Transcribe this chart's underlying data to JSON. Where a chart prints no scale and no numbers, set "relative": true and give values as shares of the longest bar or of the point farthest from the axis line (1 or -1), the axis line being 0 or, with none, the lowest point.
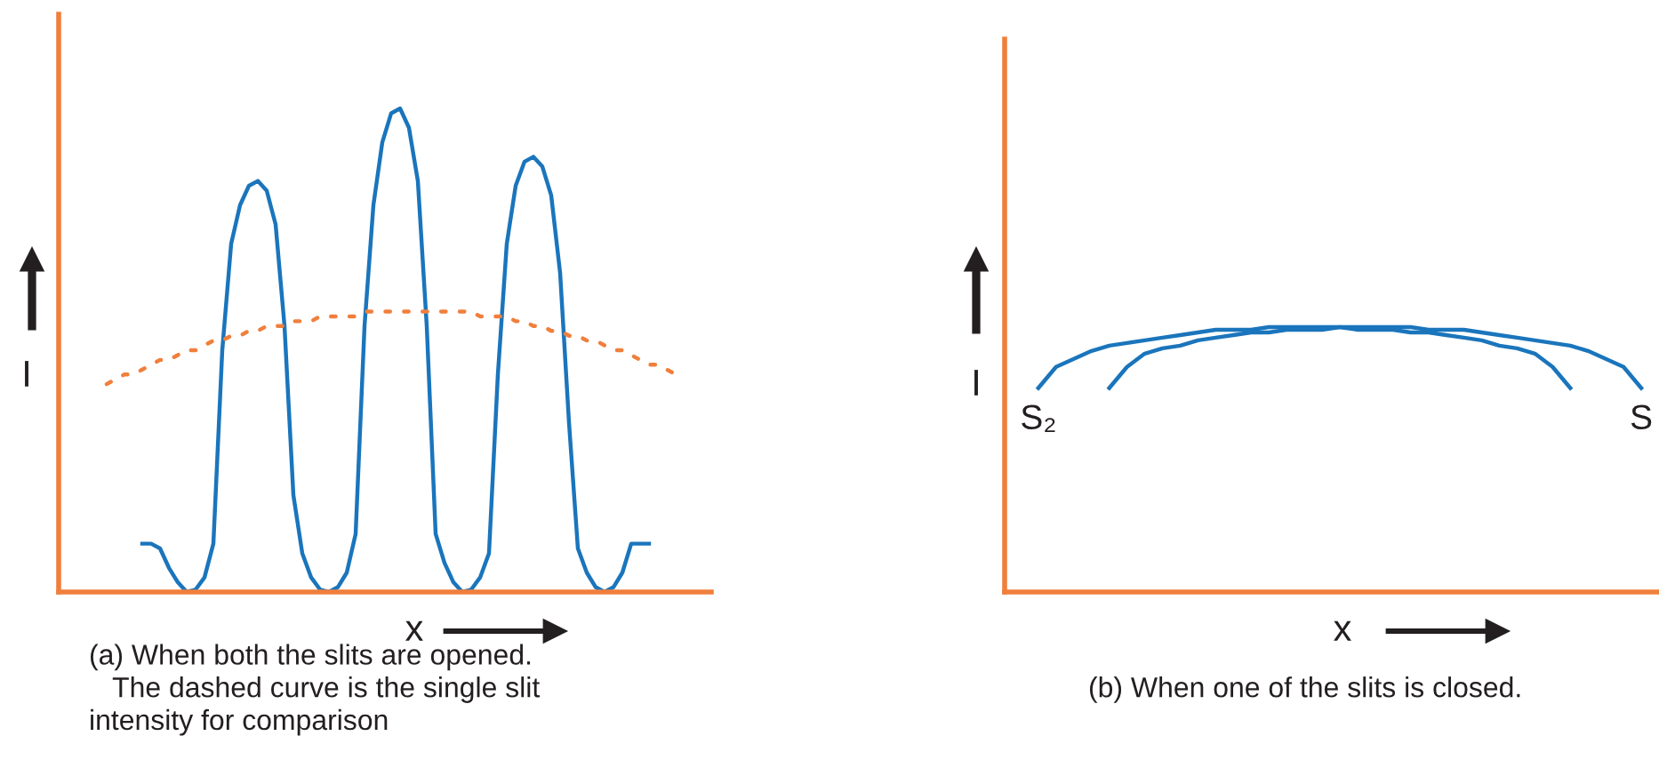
{
  "chart_data": [
    {
      "type": "line",
      "relative": true,
      "xlabel": "x",
      "ylabel": "I",
      "tick_labels": false,
      "marker": "none",
      "categories": [
        null,
        null,
        null,
        null,
        null,
        null,
        null,
        null,
        null,
        null,
        null,
        null,
        null,
        null,
        null,
        null,
        null,
        null,
        null,
        null,
        null,
        null,
        null,
        null,
        null,
        null,
        null,
        null,
        null,
        null,
        null,
        null,
        null,
        null,
        null,
        null,
        null,
        null,
        null,
        null,
        null,
        null,
        null,
        null,
        null,
        null,
        null,
        null,
        null,
        null,
        null,
        null,
        null,
        null,
        null,
        null,
        null,
        null,
        null,
        null,
        null,
        null,
        null,
        null,
        null
      ],
      "series": [
        {
          "color": "#1a75bc",
          "line_style": "solid",
          "values": [
            null,
            null,
            null,
            null,
            0.1,
            0.1,
            0.09,
            0.05,
            0.02,
            0.0,
            0.005,
            0.03,
            0.1,
            0.5,
            0.72,
            0.8,
            0.84,
            0.85,
            0.83,
            0.76,
            0.55,
            0.2,
            0.08,
            0.03,
            0.005,
            0.0,
            0.01,
            0.04,
            0.12,
            0.55,
            0.8,
            0.93,
            0.99,
            1.0,
            0.96,
            0.85,
            0.55,
            0.12,
            0.06,
            0.02,
            0.0,
            0.005,
            0.03,
            0.08,
            0.45,
            0.72,
            0.84,
            0.89,
            0.9,
            0.88,
            0.82,
            0.66,
            0.35,
            0.09,
            0.04,
            0.01,
            0.0,
            0.01,
            0.04,
            0.1,
            0.1,
            0.1,
            null,
            null,
            null
          ]
        },
        {
          "color": "#f07f3c",
          "line_style": "dotted",
          "values": [
            0.43,
            0.44,
            0.45,
            0.45,
            0.46,
            0.47,
            0.48,
            0.48,
            0.49,
            0.5,
            0.5,
            0.51,
            0.52,
            0.52,
            0.53,
            0.53,
            0.54,
            0.54,
            0.55,
            0.55,
            0.55,
            0.56,
            0.56,
            0.56,
            0.57,
            0.57,
            0.57,
            0.57,
            0.57,
            0.58,
            0.58,
            0.58,
            0.58,
            0.58,
            0.58,
            0.58,
            0.58,
            0.58,
            0.58,
            0.58,
            0.58,
            0.58,
            0.57,
            0.57,
            0.57,
            0.57,
            0.56,
            0.56,
            0.55,
            0.55,
            0.54,
            0.54,
            0.53,
            0.53,
            0.52,
            0.52,
            0.51,
            0.5,
            0.5,
            0.49,
            0.48,
            0.47,
            0.47,
            0.46,
            0.45
          ]
        }
      ],
      "annotations": [
        "(a) When both the slits are opened.\n   The dashed curve is the single slit\nintensity for comparison"
      ]
    },
    {
      "type": "line",
      "relative": true,
      "xlabel": "x",
      "ylabel": "I",
      "tick_labels": false,
      "marker": "none",
      "categories": [
        null,
        null,
        null,
        null,
        null,
        null,
        null,
        null,
        null,
        null,
        null,
        null,
        null,
        null,
        null,
        null,
        null,
        null,
        null,
        null,
        null,
        null,
        null,
        null,
        null,
        null,
        null,
        null,
        null,
        null,
        null,
        null,
        null,
        null,
        null
      ],
      "series": [
        {
          "name": "S₂",
          "color": "#1a75bc",
          "line_style": "solid",
          "values": [
            0.77,
            0.85,
            0.88,
            0.91,
            0.93,
            0.94,
            0.95,
            0.96,
            0.97,
            0.98,
            0.99,
            0.99,
            0.99,
            1.0,
            1.0,
            1.0,
            1.0,
            1.0,
            0.99,
            0.99,
            0.99,
            0.98,
            0.98,
            0.97,
            0.96,
            0.95,
            0.93,
            0.92,
            0.9,
            0.85,
            0.77,
            null,
            null,
            null,
            null
          ]
        },
        {
          "name": "S",
          "color": "#1a75bc",
          "line_style": "solid",
          "values": [
            null,
            null,
            null,
            null,
            0.77,
            0.85,
            0.9,
            0.92,
            0.93,
            0.95,
            0.96,
            0.97,
            0.98,
            0.98,
            0.99,
            0.99,
            0.99,
            1.0,
            1.0,
            1.0,
            1.0,
            1.0,
            0.99,
            0.99,
            0.99,
            0.98,
            0.97,
            0.96,
            0.95,
            0.94,
            0.93,
            0.91,
            0.88,
            0.85,
            0.77
          ]
        }
      ],
      "annotations": [
        "(b) When one of the slits is closed."
      ]
    }
  ]
}
